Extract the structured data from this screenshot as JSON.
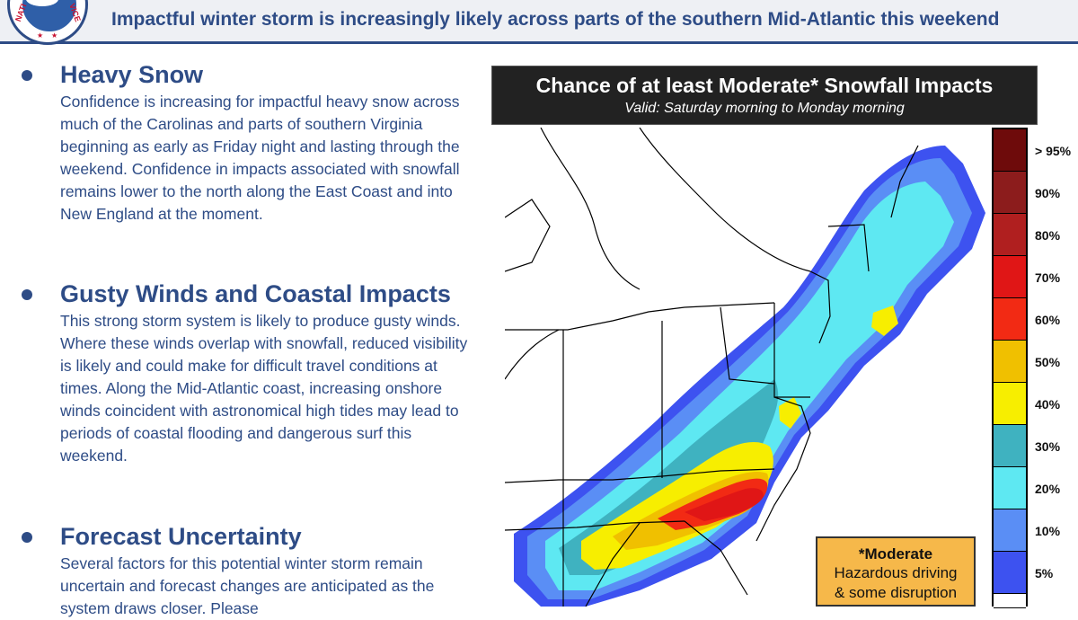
{
  "header": {
    "headline": "Impactful winter storm is increasingly likely across parts of the southern Mid-Atlantic this weekend",
    "logo_text_left": "NATI",
    "logo_text_right": "VICE"
  },
  "sections": [
    {
      "title": "Heavy Snow",
      "body": "Confidence is increasing for impactful heavy snow across much of the Carolinas and parts of southern Virginia beginning as early as Friday night and lasting through the weekend. Confidence in impacts associated with snowfall remains lower to the north along the East Coast and into New England at the moment."
    },
    {
      "title": "Gusty Winds and Coastal Impacts",
      "body": "This strong storm system is likely to produce gusty winds. Where these winds overlap with snowfall, reduced visibility is likely and could make for difficult travel conditions at times. Along the Mid-Atlantic coast, increasing onshore winds coincident with astronomical high tides may lead to periods of coastal flooding and dangerous surf this weekend."
    },
    {
      "title": "Forecast Uncertainty",
      "body": "Several factors for this potential winter storm remain uncertain and forecast changes are anticipated as the system draws closer. Please"
    }
  ],
  "map": {
    "title": "Chance of at least Moderate* Snowfall Impacts",
    "subtitle": "Valid: Saturday morning to Monday morning",
    "legend": [
      {
        "label": "> 95%",
        "color": "#6e0b0b"
      },
      {
        "label": "90%",
        "color": "#8c1c1c"
      },
      {
        "label": "80%",
        "color": "#b01f1f"
      },
      {
        "label": "70%",
        "color": "#e01616"
      },
      {
        "label": "60%",
        "color": "#f22a14"
      },
      {
        "label": "50%",
        "color": "#f0c000"
      },
      {
        "label": "40%",
        "color": "#f7ee00"
      },
      {
        "label": "30%",
        "color": "#3fb2c0"
      },
      {
        "label": "20%",
        "color": "#5ee8f2"
      },
      {
        "label": "10%",
        "color": "#5a8ef5"
      },
      {
        "label": "5%",
        "color": "#3d52f0"
      },
      {
        "label": "",
        "color": "#ffffff"
      }
    ],
    "note": {
      "title": "*Moderate",
      "line1": "Hazardous driving",
      "line2": "& some disruption"
    }
  }
}
